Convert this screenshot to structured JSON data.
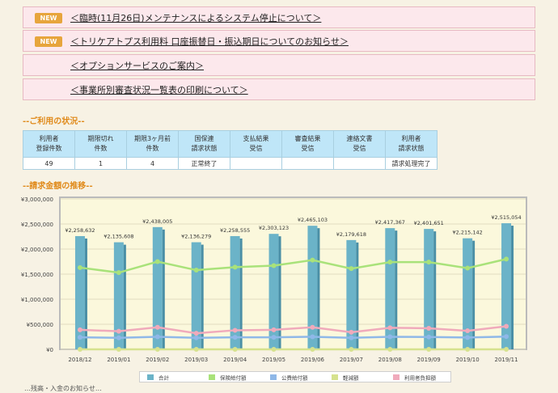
{
  "notices": [
    {
      "badge": "NEW",
      "text": "＜臨時(11月26日)メンテナンスによるシステム停止について＞"
    },
    {
      "badge": "NEW",
      "text": "＜トリケアトプス利用料 口座振替日・振込期日についてのお知らせ＞"
    },
    {
      "badge": "",
      "text": "＜オプションサービスのご案内＞"
    },
    {
      "badge": "",
      "text": "＜事業所別審査状況一覧表の印刷について＞"
    }
  ],
  "usage": {
    "title": "--ご利用の状況--",
    "headers": [
      [
        "利用者",
        "登録件数"
      ],
      [
        "期限切れ",
        "件数"
      ],
      [
        "期限3ヶ月前",
        "件数"
      ],
      [
        "国保連",
        "請求状態"
      ],
      [
        "支払結果",
        "受信"
      ],
      [
        "審査結果",
        "受信"
      ],
      [
        "連絡文書",
        "受信"
      ],
      [
        "利用者",
        "請求状態"
      ]
    ],
    "values": [
      "49",
      "1",
      "4",
      "正常終了",
      "",
      "",
      "",
      "請求処理完了"
    ]
  },
  "chart_section_title": "--請求金額の推移--",
  "bottom_text": "…残高・入金のお知らせ…",
  "chart_data": {
    "type": "bar",
    "categories": [
      "2018/12",
      "2019/01",
      "2019/02",
      "2019/03",
      "2019/04",
      "2019/05",
      "2019/06",
      "2019/07",
      "2019/08",
      "2019/09",
      "2019/10",
      "2019/11"
    ],
    "y_ticks": [
      "¥3,000,000",
      "¥2,500,000",
      "¥2,000,000",
      "¥1,500,000",
      "¥1,000,000",
      "¥500,000",
      "¥0"
    ],
    "ylim": [
      0,
      3000000
    ],
    "series": [
      {
        "name": "合計",
        "type": "bar",
        "color": "#6bb3c8",
        "values": [
          2258632,
          2135608,
          2438005,
          2136279,
          2258555,
          2303123,
          2465103,
          2179618,
          2417367,
          2401651,
          2215142,
          2515054
        ],
        "labels": [
          "¥2,258,632",
          "¥2,135,608",
          "¥2,438,005",
          "¥2,136,279",
          "¥2,258,555",
          "¥2,303,123",
          "¥2,465,103",
          "¥2,179,618",
          "¥2,417,367",
          "¥2,401,651",
          "¥2,215,142",
          "¥2,515,054"
        ]
      },
      {
        "name": "保険給付額",
        "type": "line",
        "color": "#a9e27a",
        "values": [
          1630000,
          1530000,
          1750000,
          1580000,
          1640000,
          1670000,
          1780000,
          1610000,
          1740000,
          1740000,
          1620000,
          1800000
        ]
      },
      {
        "name": "公費給付額",
        "type": "line",
        "color": "#8fb8e8",
        "values": [
          240000,
          230000,
          250000,
          230000,
          240000,
          240000,
          250000,
          230000,
          250000,
          245000,
          235000,
          255000
        ]
      },
      {
        "name": "軽減額",
        "type": "line",
        "color": "#d6e28e",
        "values": [
          0,
          0,
          0,
          0,
          0,
          0,
          0,
          0,
          0,
          0,
          0,
          0
        ]
      },
      {
        "name": "利用者負担額",
        "type": "line",
        "color": "#f0aabb",
        "values": [
          390000,
          360000,
          440000,
          320000,
          380000,
          390000,
          440000,
          340000,
          430000,
          420000,
          370000,
          460000
        ]
      }
    ]
  }
}
